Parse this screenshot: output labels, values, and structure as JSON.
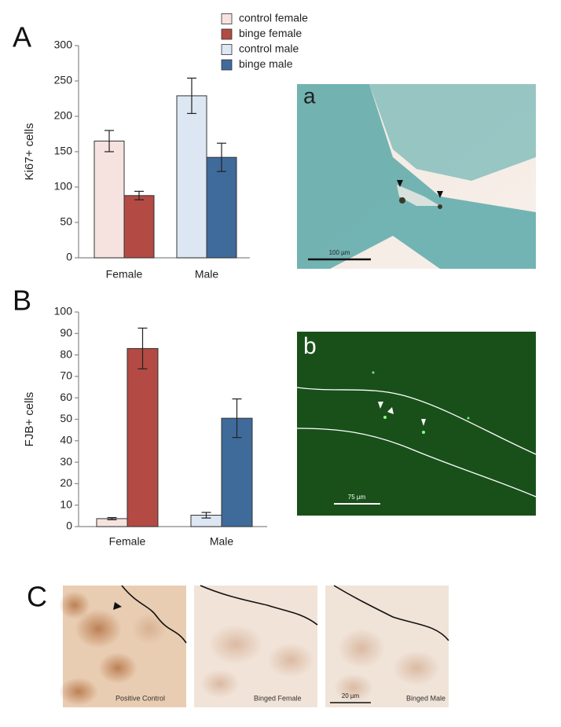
{
  "chart_data": [
    {
      "type": "bar",
      "y_label": "Ki67+ cells",
      "categories": [
        "Female",
        "Male"
      ],
      "series": [
        {
          "name": "control female",
          "color": "#f6e3e0",
          "values": [
            165,
            null
          ],
          "errors": [
            15,
            null
          ]
        },
        {
          "name": "binge female",
          "color": "#b34a44",
          "values": [
            88,
            null
          ],
          "errors": [
            6,
            null
          ]
        },
        {
          "name": "control male",
          "color": "#dde7f3",
          "values": [
            null,
            229
          ],
          "errors": [
            null,
            25
          ]
        },
        {
          "name": "binge male",
          "color": "#3f6b9b",
          "values": [
            null,
            142
          ],
          "errors": [
            null,
            20
          ]
        }
      ],
      "ylim": [
        0,
        300
      ],
      "yticks": [
        0,
        50,
        100,
        150,
        200,
        250,
        300
      ],
      "grid": false,
      "legend": "top"
    },
    {
      "type": "bar",
      "y_label": "FJB+ cells",
      "categories": [
        "Female",
        "Male"
      ],
      "series": [
        {
          "color": "#f6e3e0",
          "values": [
            3.7,
            null
          ],
          "errors": [
            0.5,
            null
          ]
        },
        {
          "color": "#b34a44",
          "values": [
            83,
            null
          ],
          "errors": [
            9.5,
            null
          ]
        },
        {
          "color": "#dde7f3",
          "values": [
            null,
            5.3
          ],
          "errors": [
            null,
            1.3
          ]
        },
        {
          "color": "#3f6b9b",
          "values": [
            null,
            50.5
          ],
          "errors": [
            null,
            9
          ]
        }
      ],
      "ylim": [
        0,
        100
      ],
      "yticks": [
        0,
        10,
        20,
        30,
        40,
        50,
        60,
        70,
        80,
        90,
        100
      ],
      "grid": false
    }
  ],
  "panel_labels": [
    "A",
    "B",
    "C"
  ],
  "images": [
    {
      "label": "a",
      "scale_bar": "100 µm"
    },
    {
      "label": "b",
      "scale_bar": "75 µm"
    }
  ],
  "panel_c": [
    {
      "caption": "Positive Control"
    },
    {
      "caption": "Binged Female"
    },
    {
      "caption": "Binged Male",
      "scale_bar": "20 µm"
    }
  ]
}
